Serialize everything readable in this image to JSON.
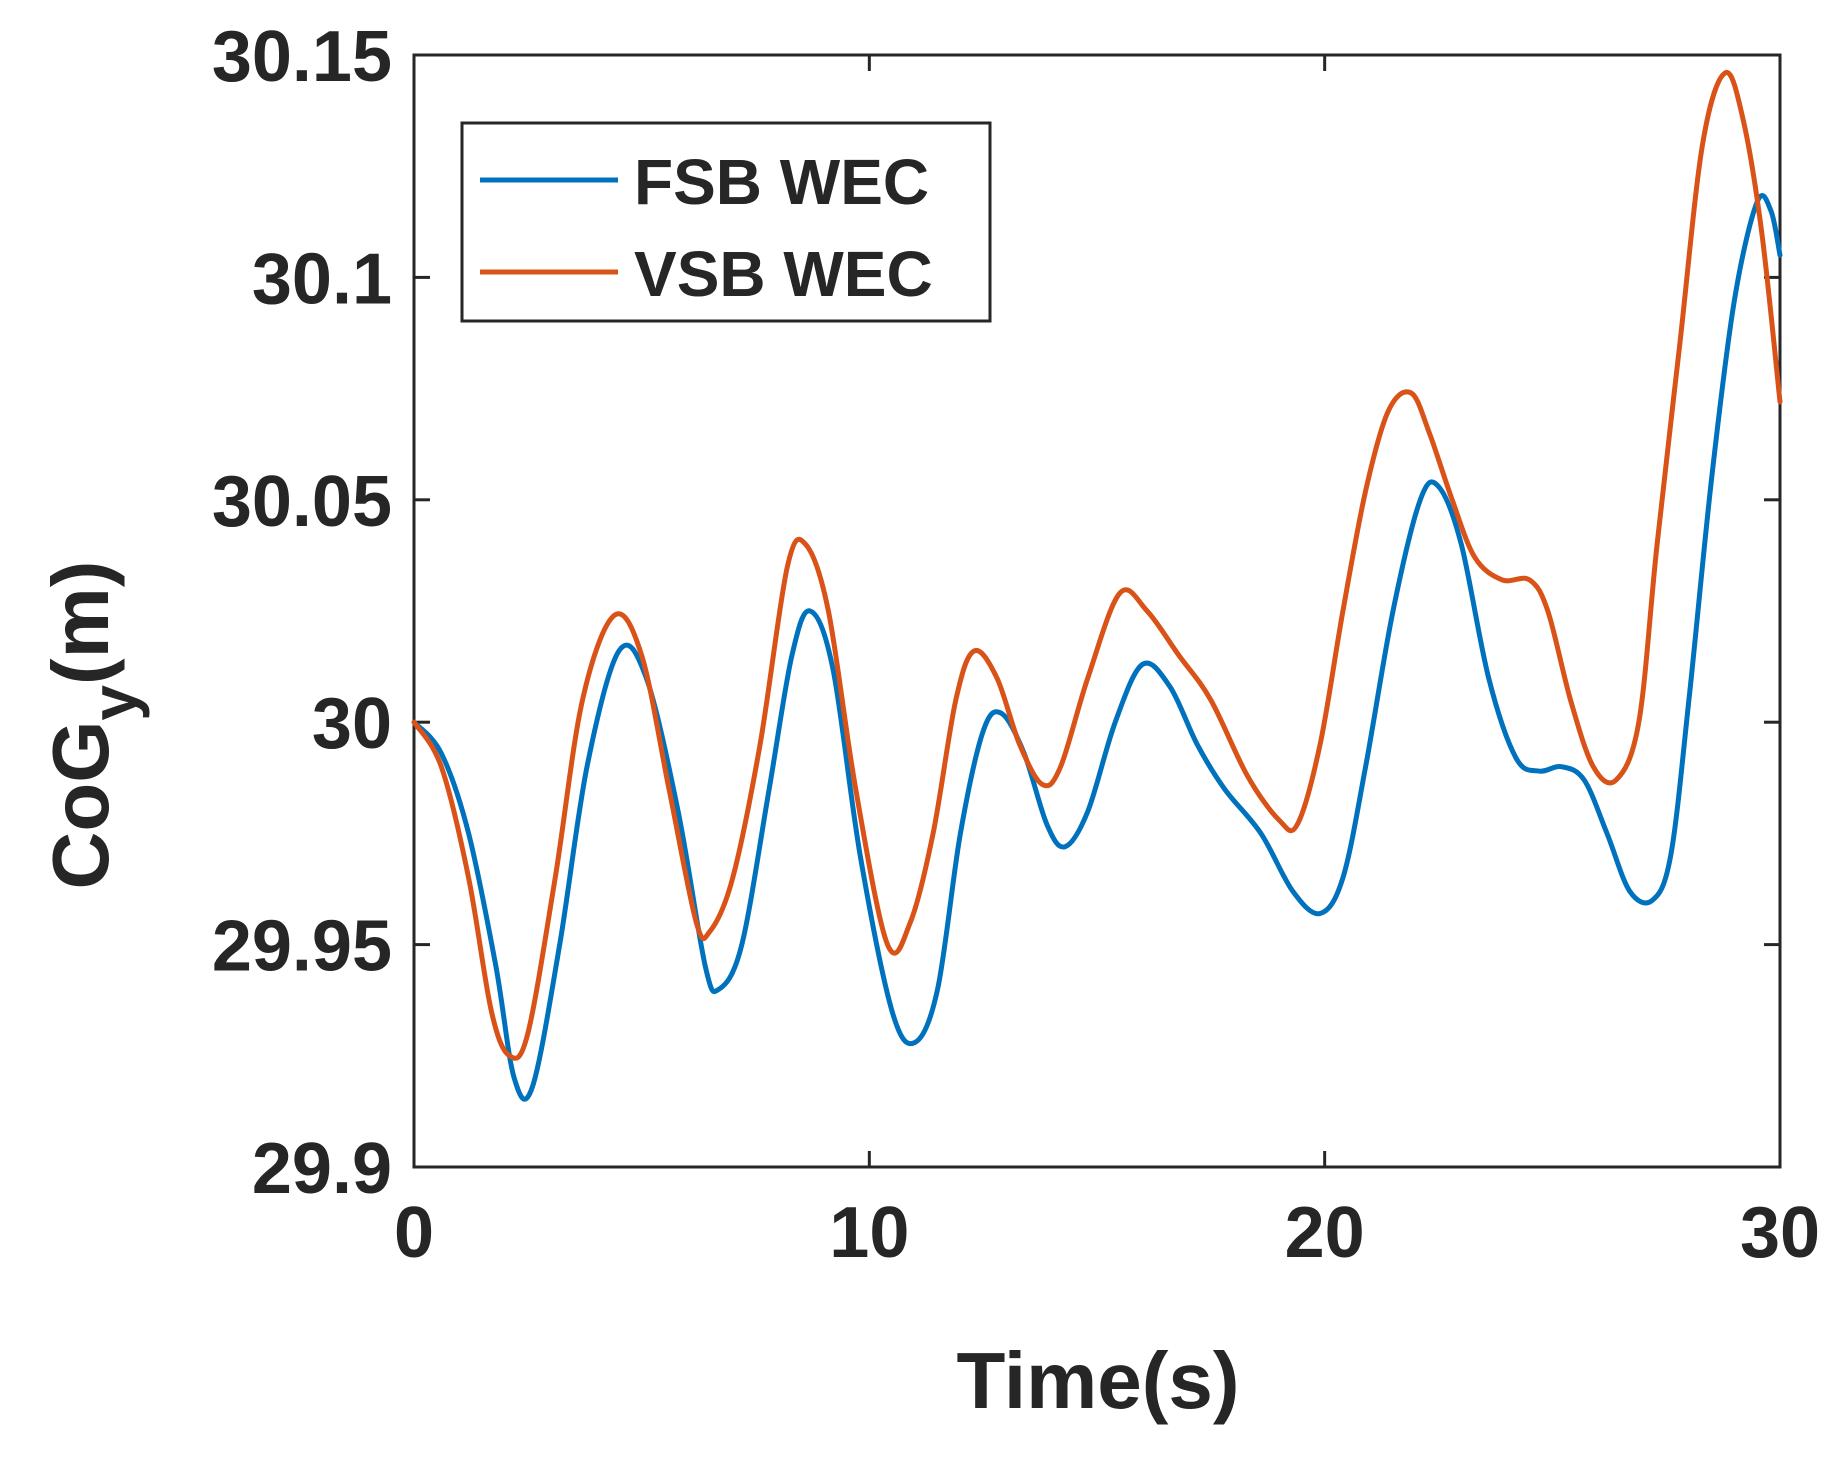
{
  "chart_data": {
    "type": "line",
    "title": "",
    "xlabel": "Time(s)",
    "ylabel": {
      "main": "CoG",
      "subscript": "y",
      "unit": "(m)"
    },
    "xlim": [
      0,
      30
    ],
    "ylim": [
      29.9,
      30.15
    ],
    "xticks": [
      0,
      10,
      20,
      30
    ],
    "xtick_labels": [
      "0",
      "10",
      "20",
      "30"
    ],
    "yticks": [
      29.9,
      29.95,
      30,
      30.05,
      30.1,
      30.15
    ],
    "ytick_labels": [
      "29.9",
      "29.95",
      "30",
      "30.05",
      "30.1",
      "30.15"
    ],
    "grid": false,
    "legend_position": "top-left",
    "series": [
      {
        "name": "FSB WEC",
        "color": "#0072BD",
        "x": [
          0,
          0.6,
          1.2,
          1.8,
          2.2,
          2.6,
          3.2,
          3.8,
          4.5,
          5.1,
          5.8,
          6.4,
          6.7,
          7.2,
          7.8,
          8.3,
          8.7,
          9.2,
          9.8,
          10.5,
          11.0,
          11.5,
          12.0,
          12.5,
          12.9,
          13.4,
          13.9,
          14.3,
          14.8,
          15.4,
          16.0,
          16.6,
          17.2,
          17.8,
          18.6,
          19.3,
          19.9,
          20.4,
          20.9,
          21.5,
          22.1,
          22.5,
          23.0,
          23.6,
          24.2,
          24.7,
          25.2,
          25.7,
          26.2,
          26.7,
          27.2,
          27.6,
          28.0,
          28.5,
          29.0,
          29.5,
          29.8,
          30.0
        ],
        "values": [
          30.0,
          29.993,
          29.975,
          29.945,
          29.92,
          29.918,
          29.95,
          29.99,
          30.016,
          30.01,
          29.98,
          29.945,
          29.94,
          29.95,
          29.985,
          30.015,
          30.025,
          30.012,
          29.97,
          29.935,
          29.928,
          29.94,
          29.975,
          29.998,
          30.002,
          29.993,
          29.977,
          29.972,
          29.98,
          30.0,
          30.013,
          30.008,
          29.995,
          29.985,
          29.975,
          29.962,
          29.957,
          29.965,
          29.99,
          30.025,
          30.05,
          30.053,
          30.04,
          30.01,
          29.992,
          29.989,
          29.99,
          29.987,
          29.975,
          29.962,
          29.96,
          29.97,
          30.005,
          30.055,
          30.095,
          30.117,
          30.115,
          30.105
        ]
      },
      {
        "name": "VSB WEC",
        "color": "#D95319",
        "x": [
          0,
          0.6,
          1.2,
          1.7,
          2.1,
          2.5,
          3.1,
          3.7,
          4.4,
          5.0,
          5.6,
          6.2,
          6.5,
          7.0,
          7.6,
          8.2,
          8.6,
          9.1,
          9.7,
          10.4,
          10.9,
          11.4,
          11.9,
          12.3,
          12.8,
          13.3,
          13.8,
          14.2,
          14.8,
          15.5,
          16.1,
          16.8,
          17.5,
          18.3,
          19.0,
          19.4,
          19.9,
          20.4,
          20.9,
          21.4,
          21.9,
          22.3,
          22.8,
          23.3,
          23.9,
          24.5,
          24.9,
          25.4,
          25.9,
          26.4,
          26.9,
          27.3,
          27.8,
          28.3,
          28.8,
          29.2,
          29.6,
          30.0
        ],
        "values": [
          30.0,
          29.99,
          29.965,
          29.935,
          29.925,
          29.93,
          29.965,
          30.005,
          30.024,
          30.015,
          29.985,
          29.955,
          29.953,
          29.965,
          29.995,
          30.035,
          30.04,
          30.025,
          29.985,
          29.95,
          29.955,
          29.975,
          30.005,
          30.016,
          30.01,
          29.995,
          29.986,
          29.99,
          30.01,
          30.029,
          30.025,
          30.015,
          30.005,
          29.988,
          29.978,
          29.977,
          29.995,
          30.025,
          30.052,
          30.07,
          30.074,
          30.065,
          30.05,
          30.037,
          30.032,
          30.032,
          30.025,
          30.005,
          29.99,
          29.987,
          30.0,
          30.04,
          30.085,
          30.13,
          30.146,
          30.135,
          30.11,
          30.072
        ]
      }
    ]
  }
}
